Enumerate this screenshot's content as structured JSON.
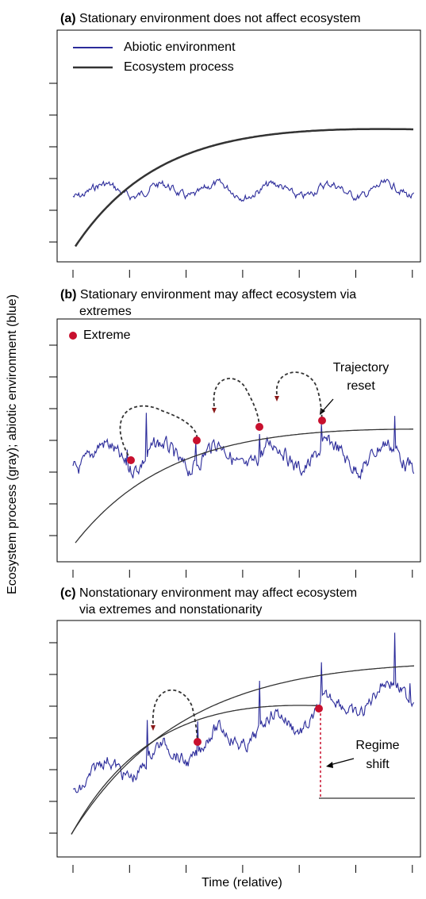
{
  "panels": [
    {
      "label": "(a)",
      "title": [
        "Stationary environment does not affect ecosystem"
      ]
    },
    {
      "label": "(b)",
      "title": [
        "Stationary environment may affect ecosystem via",
        "extremes"
      ]
    },
    {
      "label": "(c)",
      "title": [
        "Nonstationary environment may affect ecosystem",
        "via extremes and nonstationarity"
      ]
    }
  ],
  "legend": {
    "abiotic": "Abiotic environment",
    "ecosystem": "Ecosystem process",
    "extreme": "Extreme"
  },
  "annotations": {
    "trajectory_reset": [
      "Trajectory",
      "reset"
    ],
    "regime_shift": [
      "Regime",
      "shift"
    ]
  },
  "axes": {
    "y_label": "Ecosystem process (gray); abiotic environment (blue)",
    "x_label": "Time (relative)"
  }
}
